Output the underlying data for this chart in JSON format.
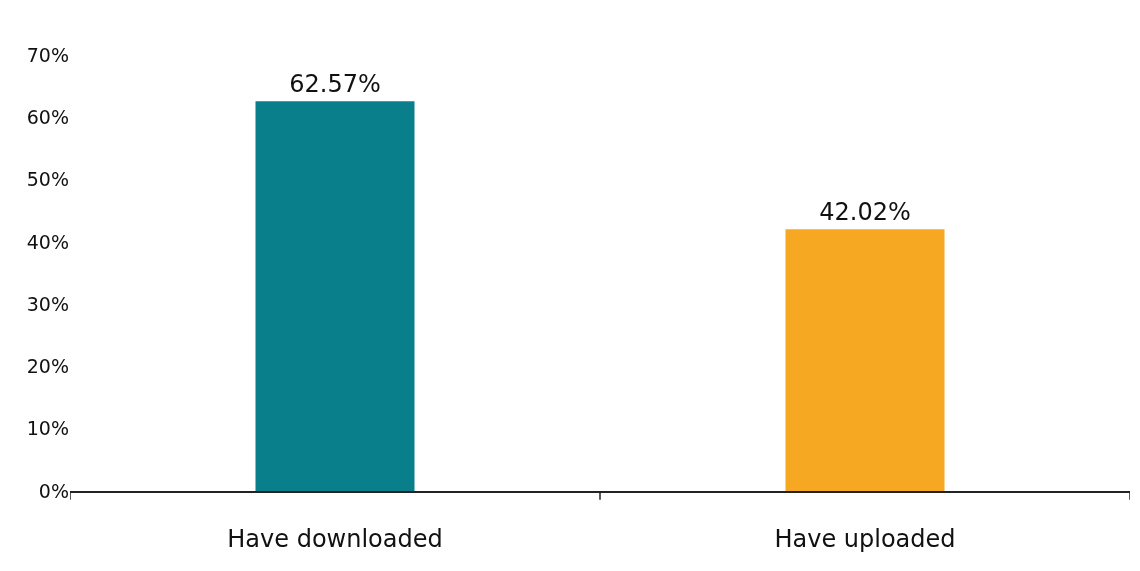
{
  "chart_data": {
    "type": "bar",
    "categories": [
      "Have downloaded",
      "Have uploaded"
    ],
    "values": [
      62.57,
      42.02
    ],
    "colors": [
      "#0a7f8c",
      "#f7a823"
    ],
    "value_labels": [
      "62.57%",
      "42.02%"
    ],
    "ylim": [
      0,
      70
    ],
    "yticks": [
      {
        "value": 0,
        "label": "0%"
      },
      {
        "value": 10,
        "label": "10%"
      },
      {
        "value": 20,
        "label": "20%"
      },
      {
        "value": 30,
        "label": "30%"
      },
      {
        "value": 40,
        "label": "40%"
      },
      {
        "value": 50,
        "label": "50%"
      },
      {
        "value": 60,
        "label": "60%"
      },
      {
        "value": 70,
        "label": "70%"
      }
    ]
  }
}
